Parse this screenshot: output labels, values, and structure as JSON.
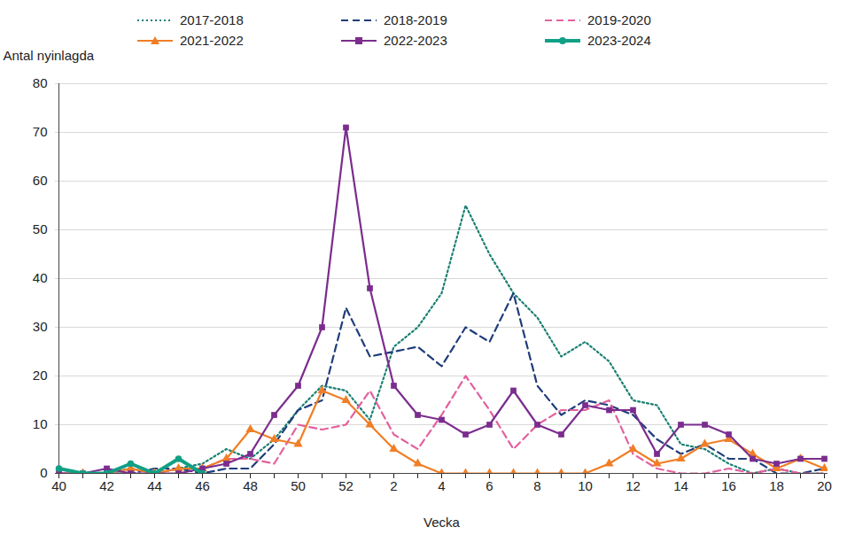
{
  "chart_data": {
    "type": "line",
    "y_label": "Antal nyinlagda",
    "x_label": "Vecka",
    "categories": [
      40,
      null,
      42,
      null,
      44,
      null,
      46,
      null,
      48,
      null,
      50,
      null,
      52,
      null,
      2,
      null,
      4,
      null,
      6,
      null,
      8,
      null,
      10,
      null,
      12,
      null,
      14,
      null,
      16,
      null,
      18,
      null,
      20
    ],
    "ylim": [
      0,
      80
    ],
    "yticks": [
      0,
      10,
      20,
      30,
      40,
      50,
      60,
      70,
      80
    ],
    "grid": true,
    "legend": "top",
    "series": [
      {
        "name": "2017-2018",
        "color": "#1a8073",
        "line_style": "dotted",
        "marker": "none",
        "values": [
          1,
          0,
          0,
          1,
          0,
          1,
          2,
          5,
          3,
          7,
          13,
          18,
          17,
          11,
          26,
          30,
          37,
          55,
          45,
          37,
          32,
          24,
          27,
          23,
          15,
          14,
          6,
          5,
          2,
          0,
          1,
          0,
          0
        ]
      },
      {
        "name": "2018-2019",
        "color": "#1f3d7a",
        "line_style": "dashed",
        "marker": "none",
        "values": [
          1,
          0,
          0,
          0,
          1,
          1,
          0,
          1,
          1,
          6,
          13,
          15,
          34,
          24,
          25,
          26,
          22,
          30,
          27,
          37,
          18,
          12,
          15,
          14,
          12,
          7,
          4,
          6,
          3,
          3,
          0,
          0,
          1
        ]
      },
      {
        "name": "2019-2020",
        "color": "#e3609e",
        "line_style": "dashed",
        "marker": "none",
        "values": [
          0,
          0,
          0,
          1,
          0,
          1,
          1,
          3,
          3,
          2,
          10,
          9,
          10,
          17,
          8,
          5,
          12,
          20,
          13,
          5,
          10,
          13,
          13,
          15,
          4,
          1,
          0,
          0,
          1,
          0,
          1,
          0,
          0
        ]
      },
      {
        "name": "2021-2022",
        "color": "#f07e26",
        "line_style": "solid",
        "marker": "triangle",
        "values": [
          0,
          0,
          0,
          1,
          0,
          1,
          1,
          3,
          9,
          7,
          6,
          17,
          15,
          10,
          5,
          2,
          0,
          0,
          0,
          0,
          0,
          0,
          0,
          2,
          5,
          2,
          3,
          6,
          7,
          4,
          1,
          3,
          1
        ]
      },
      {
        "name": "2022-2023",
        "color": "#7b2d8e",
        "line_style": "solid",
        "marker": "square",
        "values": [
          0,
          0,
          1,
          0,
          0,
          0,
          1,
          2,
          4,
          12,
          18,
          30,
          71,
          38,
          18,
          12,
          11,
          8,
          10,
          17,
          10,
          8,
          14,
          13,
          13,
          4,
          10,
          10,
          8,
          3,
          2,
          3,
          3
        ]
      },
      {
        "name": "2023-2024",
        "color": "#10a085",
        "line_style": "thick",
        "marker": "circle",
        "values": [
          1,
          0,
          0,
          2,
          0,
          3,
          0,
          null,
          null,
          null,
          null,
          null,
          null,
          null,
          null,
          null,
          null,
          null,
          null,
          null,
          null,
          null,
          null,
          null,
          null,
          null,
          null,
          null,
          null,
          null,
          null,
          null,
          null
        ]
      }
    ]
  }
}
